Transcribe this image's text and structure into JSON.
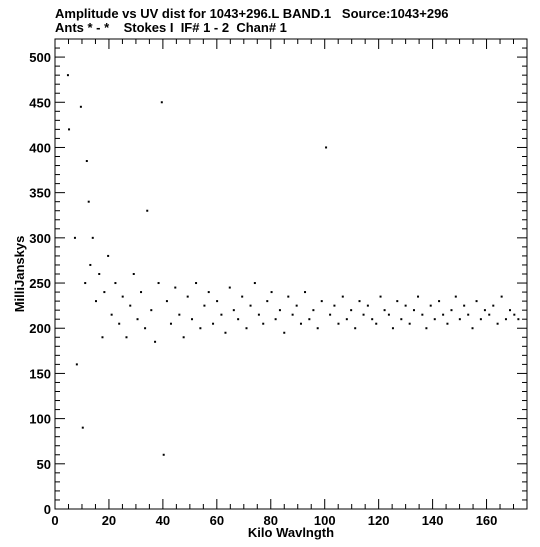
{
  "header": {
    "line1": "Amplitude vs UV dist for 1043+296.L BAND.1   Source:1043+296",
    "line2": "Ants * - *    Stokes I  IF# 1 - 2  Chan# 1"
  },
  "chart_data": {
    "type": "scatter",
    "title": "Amplitude vs UV dist for 1043+296.L BAND.1   Source:1043+296",
    "subtitle": "Ants * - *    Stokes I  IF# 1 - 2  Chan# 1",
    "xlabel": "Kilo Wavlngth",
    "ylabel": "MilliJanskys",
    "xlim": [
      0,
      175
    ],
    "ylim": [
      0,
      520
    ],
    "xticks": [
      0,
      20,
      40,
      60,
      80,
      100,
      120,
      140,
      160
    ],
    "yticks": [
      0,
      50,
      100,
      150,
      200,
      250,
      300,
      350,
      400,
      450,
      500
    ],
    "grid": false,
    "legend": "none",
    "color": "#000000",
    "series": [
      {
        "x": [
          4.8,
          5.2,
          7.4,
          8.1,
          9.6,
          10.3,
          11.2,
          11.8,
          12.5,
          13.1,
          14.0,
          15.2,
          16.4,
          17.6,
          18.3,
          19.7,
          21.0,
          22.4,
          23.8,
          25.1,
          26.5,
          27.9,
          29.2,
          30.6,
          31.9,
          33.4,
          34.2,
          35.7,
          37.1,
          38.4,
          39.6,
          40.3,
          41.5,
          43.0,
          44.6,
          46.1,
          47.7,
          49.2,
          50.8,
          52.3,
          53.9,
          55.4,
          57.0,
          58.6,
          60.1,
          61.7,
          63.2,
          64.8,
          66.3,
          67.9,
          69.4,
          71.0,
          72.5,
          74.1,
          75.6,
          77.2,
          78.7,
          80.3,
          81.8,
          83.4,
          85.0,
          86.5,
          88.1,
          89.6,
          91.2,
          92.7,
          94.3,
          95.8,
          97.4,
          98.9,
          100.5,
          102.0,
          103.6,
          105.1,
          106.7,
          108.2,
          109.8,
          111.3,
          112.9,
          114.4,
          116.0,
          117.6,
          119.1,
          120.7,
          122.2,
          123.8,
          125.3,
          126.9,
          128.4,
          130.0,
          131.5,
          133.1,
          134.6,
          136.2,
          137.7,
          139.3,
          140.8,
          142.4,
          143.9,
          145.5,
          147.0,
          148.6,
          150.1,
          151.7,
          153.2,
          154.8,
          156.3,
          157.9,
          159.4,
          161.0,
          162.5,
          164.1,
          165.6,
          167.2,
          168.7,
          170.3,
          171.8
        ],
        "y": [
          480,
          420,
          300,
          160,
          445,
          90,
          250,
          385,
          340,
          270,
          300,
          230,
          260,
          190,
          240,
          280,
          215,
          250,
          205,
          235,
          190,
          225,
          260,
          210,
          240,
          200,
          330,
          220,
          185,
          250,
          450,
          60,
          230,
          205,
          245,
          215,
          190,
          235,
          210,
          250,
          200,
          225,
          240,
          205,
          230,
          215,
          195,
          245,
          220,
          210,
          235,
          200,
          225,
          250,
          215,
          205,
          230,
          240,
          210,
          220,
          195,
          235,
          215,
          225,
          205,
          240,
          210,
          220,
          200,
          230,
          400,
          215,
          225,
          205,
          235,
          210,
          220,
          200,
          230,
          215,
          225,
          210,
          205,
          235,
          220,
          215,
          200,
          230,
          210,
          225,
          205,
          220,
          235,
          215,
          200,
          225,
          210,
          230,
          215,
          205,
          220,
          235,
          210,
          225,
          215,
          200,
          230,
          210,
          220,
          215,
          225,
          205,
          235,
          210,
          220,
          215,
          210
        ]
      }
    ]
  }
}
